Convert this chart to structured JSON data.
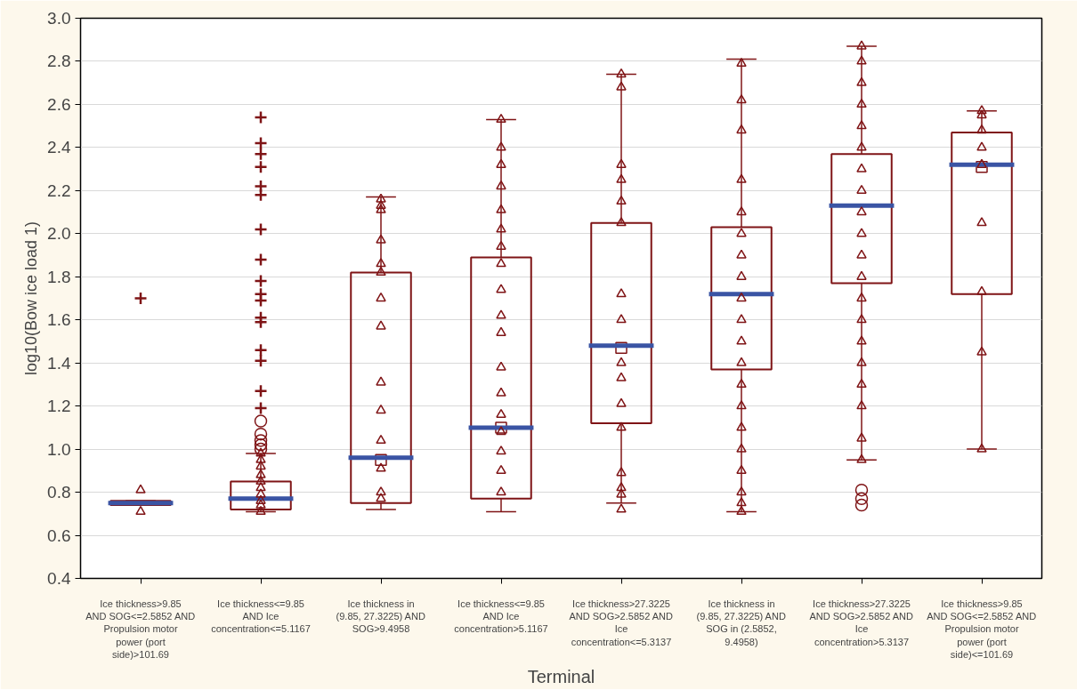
{
  "chart_data": {
    "type": "box",
    "xlabel": "Terminal",
    "ylabel": "log10(Bow ice load 1)",
    "categories": [
      "Ice thickness>9.85 AND SOG<=2.5852 AND Propulsion motor power (port side)>101.69",
      "Ice thickness<=9.85 AND Ice concentration<=5.1167",
      "Ice thickness in (9.85, 27.3225) AND SOG>9.4958",
      "Ice thickness<=9.85 AND Ice concentration>5.1167",
      "Ice thickness>27.3225 AND SOG>2.5852 AND Ice concentration<=5.3137",
      "Ice thickness in (9.85, 27.3225) AND SOG in (2.5852, 9.4958)",
      "Ice thickness>27.3225 AND SOG>2.5852 AND Ice concentration>5.3137",
      "Ice thickness>9.85 AND SOG<=2.5852 AND Propulsion motor power (port side)<=101.69"
    ],
    "color": "#7f1416",
    "boxes": [
      {
        "low": 0.74,
        "q1": 0.74,
        "median": 0.75,
        "q3": 0.76,
        "high": 0.76
      },
      {
        "low": 0.71,
        "q1": 0.72,
        "median": 0.77,
        "q3": 0.85,
        "high": 0.98
      },
      {
        "low": 0.72,
        "q1": 0.75,
        "median": 0.96,
        "q3": 1.82,
        "high": 2.17,
        "mean": 0.95
      },
      {
        "low": 0.71,
        "q1": 0.77,
        "median": 1.1,
        "q3": 1.89,
        "high": 2.53,
        "mean": 1.1
      },
      {
        "low": 0.75,
        "q1": 1.12,
        "median": 1.48,
        "q3": 2.05,
        "high": 2.74,
        "mean": 1.47
      },
      {
        "low": 0.71,
        "q1": 1.37,
        "median": 1.72,
        "q3": 2.03,
        "high": 2.81
      },
      {
        "low": 0.95,
        "q1": 1.77,
        "median": 2.13,
        "q3": 2.37,
        "high": 2.87
      },
      {
        "low": 1.0,
        "q1": 1.72,
        "median": 2.32,
        "q3": 2.47,
        "high": 2.57,
        "mean": 2.31
      }
    ],
    "series": [
      {
        "type": "scatter",
        "marker": "triangle",
        "color": "#7f1416",
        "x": [
          "Ice thickness>9.85 AND SOG<=2.5852 AND Propulsion motor power (port side)>101.69",
          "Ice thickness>9.85 AND SOG<=2.5852 AND Propulsion motor power (port side)>101.69",
          "Ice thickness<=9.85 AND Ice concentration<=5.1167",
          "Ice thickness<=9.85 AND Ice concentration<=5.1167",
          "Ice thickness<=9.85 AND Ice concentration<=5.1167",
          "Ice thickness<=9.85 AND Ice concentration<=5.1167",
          "Ice thickness<=9.85 AND Ice concentration<=5.1167",
          "Ice thickness<=9.85 AND Ice concentration<=5.1167",
          "Ice thickness<=9.85 AND Ice concentration<=5.1167",
          "Ice thickness<=9.85 AND Ice concentration<=5.1167",
          "Ice thickness<=9.85 AND Ice concentration<=5.1167",
          "Ice thickness<=9.85 AND Ice concentration<=5.1167",
          "Ice thickness in (9.85, 27.3225) AND SOG>9.4958",
          "Ice thickness in (9.85, 27.3225) AND SOG>9.4958",
          "Ice thickness in (9.85, 27.3225) AND SOG>9.4958",
          "Ice thickness in (9.85, 27.3225) AND SOG>9.4958",
          "Ice thickness in (9.85, 27.3225) AND SOG>9.4958",
          "Ice thickness in (9.85, 27.3225) AND SOG>9.4958",
          "Ice thickness in (9.85, 27.3225) AND SOG>9.4958",
          "Ice thickness in (9.85, 27.3225) AND SOG>9.4958",
          "Ice thickness in (9.85, 27.3225) AND SOG>9.4958",
          "Ice thickness in (9.85, 27.3225) AND SOG>9.4958",
          "Ice thickness in (9.85, 27.3225) AND SOG>9.4958",
          "Ice thickness in (9.85, 27.3225) AND SOG>9.4958",
          "Ice thickness in (9.85, 27.3225) AND SOG>9.4958",
          "Ice thickness in (9.85, 27.3225) AND SOG>9.4958",
          "Ice thickness<=9.85 AND Ice concentration>5.1167",
          "Ice thickness<=9.85 AND Ice concentration>5.1167",
          "Ice thickness<=9.85 AND Ice concentration>5.1167",
          "Ice thickness<=9.85 AND Ice concentration>5.1167",
          "Ice thickness<=9.85 AND Ice concentration>5.1167",
          "Ice thickness<=9.85 AND Ice concentration>5.1167",
          "Ice thickness<=9.85 AND Ice concentration>5.1167",
          "Ice thickness<=9.85 AND Ice concentration>5.1167",
          "Ice thickness<=9.85 AND Ice concentration>5.1167",
          "Ice thickness<=9.85 AND Ice concentration>5.1167",
          "Ice thickness<=9.85 AND Ice concentration>5.1167",
          "Ice thickness<=9.85 AND Ice concentration>5.1167",
          "Ice thickness<=9.85 AND Ice concentration>5.1167",
          "Ice thickness<=9.85 AND Ice concentration>5.1167",
          "Ice thickness<=9.85 AND Ice concentration>5.1167",
          "Ice thickness<=9.85 AND Ice concentration>5.1167",
          "Ice thickness<=9.85 AND Ice concentration>5.1167",
          "Ice thickness<=9.85 AND Ice concentration>5.1167",
          "Ice thickness>27.3225 AND SOG>2.5852 AND Ice concentration<=5.3137",
          "Ice thickness>27.3225 AND SOG>2.5852 AND Ice concentration<=5.3137",
          "Ice thickness>27.3225 AND SOG>2.5852 AND Ice concentration<=5.3137",
          "Ice thickness>27.3225 AND SOG>2.5852 AND Ice concentration<=5.3137",
          "Ice thickness>27.3225 AND SOG>2.5852 AND Ice concentration<=5.3137",
          "Ice thickness>27.3225 AND SOG>2.5852 AND Ice concentration<=5.3137",
          "Ice thickness>27.3225 AND SOG>2.5852 AND Ice concentration<=5.3137",
          "Ice thickness>27.3225 AND SOG>2.5852 AND Ice concentration<=5.3137",
          "Ice thickness>27.3225 AND SOG>2.5852 AND Ice concentration<=5.3137",
          "Ice thickness>27.3225 AND SOG>2.5852 AND Ice concentration<=5.3137",
          "Ice thickness>27.3225 AND SOG>2.5852 AND Ice concentration<=5.3137",
          "Ice thickness>27.3225 AND SOG>2.5852 AND Ice concentration<=5.3137",
          "Ice thickness>27.3225 AND SOG>2.5852 AND Ice concentration<=5.3137",
          "Ice thickness>27.3225 AND SOG>2.5852 AND Ice concentration<=5.3137",
          "Ice thickness>27.3225 AND SOG>2.5852 AND Ice concentration<=5.3137",
          "Ice thickness>27.3225 AND SOG>2.5852 AND Ice concentration<=5.3137",
          "Ice thickness in (9.85, 27.3225) AND SOG in (2.5852, 9.4958)",
          "Ice thickness in (9.85, 27.3225) AND SOG in (2.5852, 9.4958)",
          "Ice thickness in (9.85, 27.3225) AND SOG in (2.5852, 9.4958)",
          "Ice thickness in (9.85, 27.3225) AND SOG in (2.5852, 9.4958)",
          "Ice thickness in (9.85, 27.3225) AND SOG in (2.5852, 9.4958)",
          "Ice thickness in (9.85, 27.3225) AND SOG in (2.5852, 9.4958)",
          "Ice thickness in (9.85, 27.3225) AND SOG in (2.5852, 9.4958)",
          "Ice thickness in (9.85, 27.3225) AND SOG in (2.5852, 9.4958)",
          "Ice thickness in (9.85, 27.3225) AND SOG in (2.5852, 9.4958)",
          "Ice thickness in (9.85, 27.3225) AND SOG in (2.5852, 9.4958)",
          "Ice thickness in (9.85, 27.3225) AND SOG in (2.5852, 9.4958)",
          "Ice thickness in (9.85, 27.3225) AND SOG in (2.5852, 9.4958)",
          "Ice thickness in (9.85, 27.3225) AND SOG in (2.5852, 9.4958)",
          "Ice thickness in (9.85, 27.3225) AND SOG in (2.5852, 9.4958)",
          "Ice thickness in (9.85, 27.3225) AND SOG in (2.5852, 9.4958)",
          "Ice thickness in (9.85, 27.3225) AND SOG in (2.5852, 9.4958)",
          "Ice thickness in (9.85, 27.3225) AND SOG in (2.5852, 9.4958)",
          "Ice thickness in (9.85, 27.3225) AND SOG in (2.5852, 9.4958)",
          "Ice thickness in (9.85, 27.3225) AND SOG in (2.5852, 9.4958)",
          "Ice thickness in (9.85, 27.3225) AND SOG in (2.5852, 9.4958)",
          "Ice thickness>27.3225 AND SOG>2.5852 AND Ice concentration>5.3137",
          "Ice thickness>27.3225 AND SOG>2.5852 AND Ice concentration>5.3137",
          "Ice thickness>27.3225 AND SOG>2.5852 AND Ice concentration>5.3137",
          "Ice thickness>27.3225 AND SOG>2.5852 AND Ice concentration>5.3137",
          "Ice thickness>27.3225 AND SOG>2.5852 AND Ice concentration>5.3137",
          "Ice thickness>27.3225 AND SOG>2.5852 AND Ice concentration>5.3137",
          "Ice thickness>27.3225 AND SOG>2.5852 AND Ice concentration>5.3137",
          "Ice thickness>27.3225 AND SOG>2.5852 AND Ice concentration>5.3137",
          "Ice thickness>27.3225 AND SOG>2.5852 AND Ice concentration>5.3137",
          "Ice thickness>27.3225 AND SOG>2.5852 AND Ice concentration>5.3137",
          "Ice thickness>27.3225 AND SOG>2.5852 AND Ice concentration>5.3137",
          "Ice thickness>27.3225 AND SOG>2.5852 AND Ice concentration>5.3137",
          "Ice thickness>27.3225 AND SOG>2.5852 AND Ice concentration>5.3137",
          "Ice thickness>27.3225 AND SOG>2.5852 AND Ice concentration>5.3137",
          "Ice thickness>27.3225 AND SOG>2.5852 AND Ice concentration>5.3137",
          "Ice thickness>27.3225 AND SOG>2.5852 AND Ice concentration>5.3137",
          "Ice thickness>27.3225 AND SOG>2.5852 AND Ice concentration>5.3137",
          "Ice thickness>27.3225 AND SOG>2.5852 AND Ice concentration>5.3137",
          "Ice thickness>27.3225 AND SOG>2.5852 AND Ice concentration>5.3137",
          "Ice thickness>27.3225 AND SOG>2.5852 AND Ice concentration>5.3137",
          "Ice thickness>9.85 AND SOG<=2.5852 AND Propulsion motor power (port side)<=101.69",
          "Ice thickness>9.85 AND SOG<=2.5852 AND Propulsion motor power (port side)<=101.69",
          "Ice thickness>9.85 AND SOG<=2.5852 AND Propulsion motor power (port side)<=101.69",
          "Ice thickness>9.85 AND SOG<=2.5852 AND Propulsion motor power (port side)<=101.69",
          "Ice thickness>9.85 AND SOG<=2.5852 AND Propulsion motor power (port side)<=101.69",
          "Ice thickness>9.85 AND SOG<=2.5852 AND Propulsion motor power (port side)<=101.69",
          "Ice thickness>9.85 AND SOG<=2.5852 AND Propulsion motor power (port side)<=101.69",
          "Ice thickness>9.85 AND SOG<=2.5852 AND Propulsion motor power (port side)<=101.69",
          "Ice thickness>9.85 AND SOG<=2.5852 AND Propulsion motor power (port side)<=101.69"
        ],
        "values": [
          0.81,
          0.71,
          0.98,
          0.95,
          0.92,
          0.88,
          0.85,
          0.82,
          0.79,
          0.76,
          0.74,
          0.71,
          2.16,
          2.13,
          2.11,
          1.97,
          1.86,
          1.82,
          1.7,
          1.57,
          1.31,
          1.18,
          1.04,
          0.91,
          0.77,
          0.8,
          2.53,
          2.4,
          2.32,
          2.22,
          2.11,
          2.02,
          1.94,
          1.86,
          1.74,
          1.62,
          1.54,
          1.38,
          1.26,
          1.16,
          1.08,
          0.99,
          0.9,
          0.8,
          0.72,
          2.74,
          2.68,
          2.32,
          2.25,
          2.15,
          2.05,
          1.72,
          1.6,
          1.4,
          1.33,
          1.21,
          1.1,
          0.89,
          0.82,
          0.79,
          2.79,
          2.62,
          2.48,
          2.25,
          2.1,
          2.0,
          1.9,
          1.8,
          1.7,
          1.6,
          1.5,
          1.4,
          1.3,
          1.2,
          1.1,
          1.0,
          0.9,
          0.8,
          0.75,
          0.71,
          2.87,
          2.8,
          2.7,
          2.6,
          2.5,
          2.4,
          2.3,
          2.2,
          2.1,
          2.0,
          1.9,
          1.8,
          1.7,
          1.6,
          1.5,
          1.4,
          1.3,
          1.2,
          1.05,
          0.95,
          2.57,
          2.55,
          2.48,
          2.4,
          2.32,
          2.05,
          1.73,
          1.45,
          1.0
        ]
      },
      {
        "type": "scatter",
        "marker": "cross",
        "color": "#7f1416",
        "x": [
          "Ice thickness>9.85 AND SOG<=2.5852 AND Propulsion motor power (port side)>101.69",
          "Ice thickness<=9.85 AND Ice concentration<=5.1167",
          "Ice thickness<=9.85 AND Ice concentration<=5.1167",
          "Ice thickness<=9.85 AND Ice concentration<=5.1167",
          "Ice thickness<=9.85 AND Ice concentration<=5.1167",
          "Ice thickness<=9.85 AND Ice concentration<=5.1167",
          "Ice thickness<=9.85 AND Ice concentration<=5.1167",
          "Ice thickness<=9.85 AND Ice concentration<=5.1167",
          "Ice thickness<=9.85 AND Ice concentration<=5.1167",
          "Ice thickness<=9.85 AND Ice concentration<=5.1167",
          "Ice thickness<=9.85 AND Ice concentration<=5.1167",
          "Ice thickness<=9.85 AND Ice concentration<=5.1167",
          "Ice thickness<=9.85 AND Ice concentration<=5.1167",
          "Ice thickness<=9.85 AND Ice concentration<=5.1167",
          "Ice thickness<=9.85 AND Ice concentration<=5.1167",
          "Ice thickness<=9.85 AND Ice concentration<=5.1167",
          "Ice thickness<=9.85 AND Ice concentration<=5.1167",
          "Ice thickness<=9.85 AND Ice concentration<=5.1167"
        ],
        "values": [
          1.7,
          2.54,
          2.42,
          2.37,
          2.31,
          2.22,
          2.18,
          2.02,
          1.88,
          1.78,
          1.72,
          1.69,
          1.61,
          1.59,
          1.46,
          1.41,
          1.27,
          1.19
        ]
      },
      {
        "type": "scatter",
        "marker": "circle",
        "color": "#7f1416",
        "x": [
          "Ice thickness<=9.85 AND Ice concentration<=5.1167",
          "Ice thickness<=9.85 AND Ice concentration<=5.1167",
          "Ice thickness<=9.85 AND Ice concentration<=5.1167",
          "Ice thickness<=9.85 AND Ice concentration<=5.1167",
          "Ice thickness<=9.85 AND Ice concentration<=5.1167",
          "Ice thickness>27.3225 AND SOG>2.5852 AND Ice concentration>5.3137",
          "Ice thickness>27.3225 AND SOG>2.5852 AND Ice concentration>5.3137",
          "Ice thickness>27.3225 AND SOG>2.5852 AND Ice concentration>5.3137"
        ],
        "values": [
          1.13,
          1.07,
          1.04,
          1.02,
          1.0,
          0.81,
          0.77,
          0.74
        ]
      }
    ],
    "ylim": [
      0.4,
      3.0
    ],
    "yticks": [
      0.4,
      0.6,
      0.8,
      {
        "value": 1,
        "label": "1.0"
      },
      1.2,
      1.4,
      1.6,
      1.8,
      {
        "value": 2,
        "label": "2.0"
      },
      2.2,
      2.4,
      2.6,
      2.8,
      {
        "value": 3,
        "label": "3.0"
      }
    ],
    "grid": "y"
  }
}
